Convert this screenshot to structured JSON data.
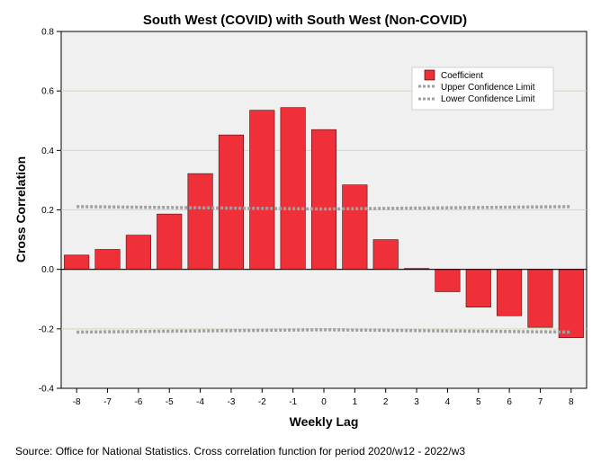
{
  "chart_data": {
    "type": "bar",
    "title": "South West (COVID) with South West (Non-COVID)",
    "xlabel": "Weekly Lag",
    "ylabel": "Cross Correlation",
    "categories": [
      "-8",
      "-7",
      "-6",
      "-5",
      "-4",
      "-3",
      "-2",
      "-1",
      "0",
      "1",
      "2",
      "3",
      "4",
      "5",
      "6",
      "7",
      "8"
    ],
    "series": [
      {
        "name": "Coefficient",
        "color": "#ef3039",
        "values": [
          0.048,
          0.067,
          0.115,
          0.186,
          0.322,
          0.452,
          0.535,
          0.544,
          0.47,
          0.284,
          0.1,
          0.003,
          -0.075,
          -0.127,
          -0.156,
          -0.195,
          -0.23
        ]
      }
    ],
    "upper_confidence_limit": {
      "name": "Upper Confidence Limit",
      "values": [
        0.211,
        0.21,
        0.209,
        0.208,
        0.207,
        0.206,
        0.205,
        0.204,
        0.203,
        0.204,
        0.205,
        0.206,
        0.207,
        0.208,
        0.209,
        0.21,
        0.211
      ]
    },
    "lower_confidence_limit": {
      "name": "Lower Confidence Limit",
      "values": [
        -0.211,
        -0.21,
        -0.209,
        -0.208,
        -0.207,
        -0.206,
        -0.205,
        -0.204,
        -0.203,
        -0.204,
        -0.205,
        -0.206,
        -0.207,
        -0.208,
        -0.209,
        -0.21,
        -0.211
      ]
    },
    "ylim": [
      -0.4,
      0.8
    ],
    "yticks": [
      "-0.4",
      "-0.2",
      "0.0",
      "0.2",
      "0.4",
      "0.6",
      "0.8"
    ],
    "grid": true,
    "legend_position": "top-right",
    "colors": {
      "bar": "#ef3039",
      "plot_background": "#f0f0f0",
      "gridline": "#d6dcab",
      "confidence_line": "#a0a0a0"
    }
  },
  "footer": {
    "source": "Source: Office for National Statistics. Cross correlation function for period 2020/w12 - 2022/w3"
  }
}
